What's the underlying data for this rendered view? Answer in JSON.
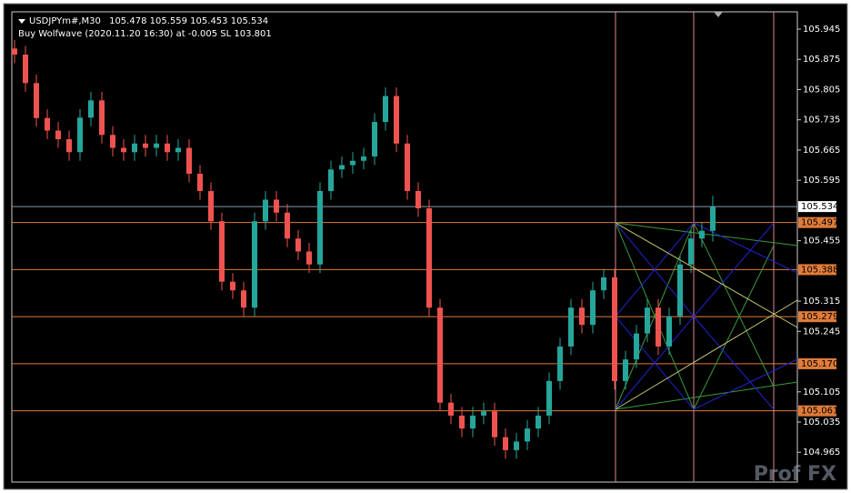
{
  "chart_data": {
    "type": "candlestick",
    "symbol": "USDJPYm#,M30",
    "annotation": "Buy Wolfwave (2020.11.20 16:30) at -0.005 SL 103.801",
    "watermark": "Prof FX",
    "ylim": [
      104.896,
      105.985
    ],
    "yticks": [
      105.945,
      105.875,
      105.805,
      105.735,
      105.665,
      105.595,
      105.455,
      105.315,
      105.245,
      105.105,
      105.035,
      104.965
    ],
    "up_color": "#26a69a",
    "down_color": "#ef5350",
    "level_color": "#e07b39",
    "open": [
      105.9,
      105.886,
      105.82,
      105.739,
      105.71,
      105.69,
      105.66,
      105.74,
      105.78,
      105.7,
      105.67,
      105.66,
      105.68,
      105.67,
      105.68,
      105.66,
      105.67,
      105.61,
      105.57,
      105.5,
      105.36,
      105.34,
      105.3,
      105.5,
      105.55,
      105.52,
      105.46,
      105.43,
      105.4,
      105.57,
      105.62,
      105.63,
      105.64,
      105.65,
      105.73,
      105.79,
      105.68,
      105.57,
      105.53,
      105.3,
      105.08,
      105.05,
      105.02,
      105.05,
      105.06,
      105.0,
      104.97,
      104.99,
      105.02,
      105.05,
      105.13,
      105.21,
      105.3,
      105.26,
      105.34,
      105.37,
      105.13,
      105.18,
      105.24,
      105.3,
      105.21,
      105.28,
      105.4,
      105.46,
      105.478
    ],
    "high": [
      105.92,
      105.906,
      105.84,
      105.759,
      105.73,
      105.71,
      105.76,
      105.8,
      105.8,
      105.72,
      105.69,
      105.7,
      105.7,
      105.7,
      105.7,
      105.69,
      105.69,
      105.63,
      105.59,
      105.52,
      105.38,
      105.36,
      105.52,
      105.57,
      105.57,
      105.54,
      105.48,
      105.45,
      105.59,
      105.64,
      105.65,
      105.66,
      105.67,
      105.75,
      105.81,
      105.81,
      105.7,
      105.59,
      105.55,
      105.32,
      105.1,
      105.07,
      105.07,
      105.08,
      105.08,
      105.02,
      105.01,
      105.04,
      105.07,
      105.15,
      105.23,
      105.32,
      105.32,
      105.36,
      105.39,
      105.39,
      105.2,
      105.26,
      105.32,
      105.32,
      105.3,
      105.42,
      105.48,
      105.498,
      105.559
    ],
    "low": [
      105.866,
      105.8,
      105.719,
      105.69,
      105.67,
      105.64,
      105.64,
      105.72,
      105.68,
      105.65,
      105.64,
      105.64,
      105.65,
      105.65,
      105.64,
      105.64,
      105.59,
      105.55,
      105.48,
      105.34,
      105.32,
      105.28,
      105.28,
      105.48,
      105.5,
      105.44,
      105.41,
      105.38,
      105.38,
      105.55,
      105.6,
      105.61,
      105.62,
      105.63,
      105.71,
      105.66,
      105.55,
      105.51,
      105.28,
      105.06,
      105.03,
      105.0,
      105.0,
      105.03,
      104.98,
      104.95,
      104.95,
      104.97,
      105.0,
      105.03,
      105.11,
      105.19,
      105.24,
      105.24,
      105.32,
      105.11,
      105.11,
      105.16,
      105.22,
      105.19,
      105.19,
      105.26,
      105.38,
      105.44,
      105.453
    ],
    "close": [
      105.886,
      105.82,
      105.739,
      105.71,
      105.69,
      105.66,
      105.74,
      105.78,
      105.7,
      105.67,
      105.66,
      105.68,
      105.67,
      105.68,
      105.66,
      105.67,
      105.61,
      105.57,
      105.5,
      105.36,
      105.34,
      105.3,
      105.5,
      105.55,
      105.52,
      105.46,
      105.43,
      105.4,
      105.57,
      105.62,
      105.63,
      105.64,
      105.65,
      105.73,
      105.79,
      105.68,
      105.57,
      105.53,
      105.3,
      105.08,
      105.05,
      105.02,
      105.05,
      105.06,
      105.0,
      104.97,
      104.99,
      105.02,
      105.05,
      105.13,
      105.21,
      105.3,
      105.26,
      105.34,
      105.37,
      105.13,
      105.18,
      105.24,
      105.3,
      105.21,
      105.28,
      105.4,
      105.46,
      105.478,
      105.534
    ],
    "levels": [
      105.497,
      105.388,
      105.279,
      {
        "value": 105.17,
        "label": "105.170"
      },
      105.061
    ],
    "last_price": 105.534
  }
}
